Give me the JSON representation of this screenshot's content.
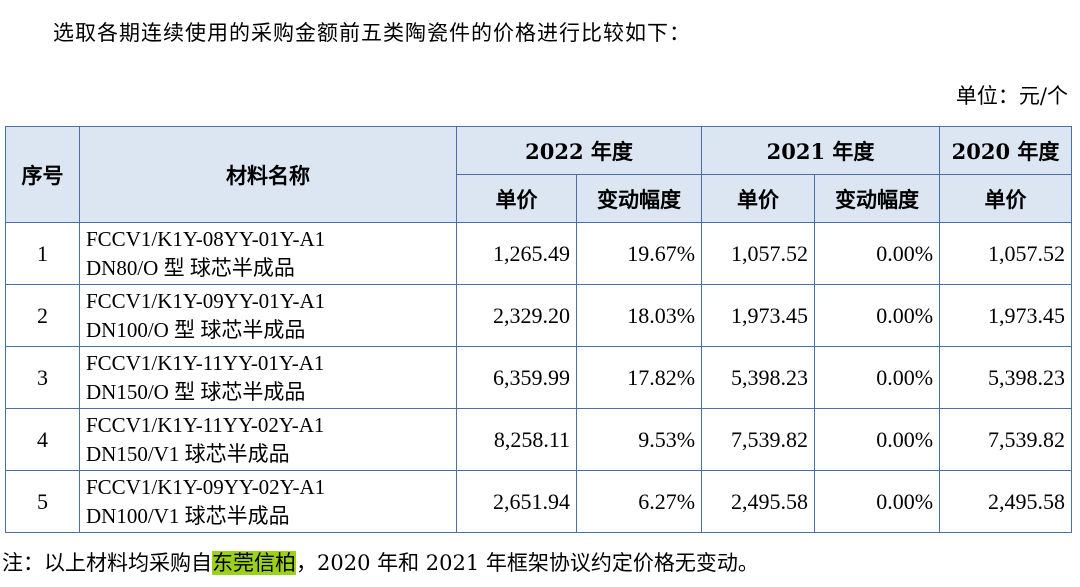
{
  "intro": "选取各期连续使用的采购金额前五类陶瓷件的价格进行比较如下：",
  "unit": "单位：元/个",
  "table": {
    "headers": {
      "seq": "序号",
      "name": "材料名称",
      "y2022": "2022 年度",
      "y2021": "2021 年度",
      "y2020": "2020 年度",
      "price": "单价",
      "change": "变动幅度"
    },
    "rows": [
      {
        "no": "1",
        "name1": "FCCV1/K1Y-08YY-01Y-A1",
        "name2": "DN80/O 型 球芯半成品",
        "p2022": "1,265.49",
        "c2022": "19.67%",
        "p2021": "1,057.52",
        "c2021": "0.00%",
        "p2020": "1,057.52"
      },
      {
        "no": "2",
        "name1": "FCCV1/K1Y-09YY-01Y-A1",
        "name2": "DN100/O 型 球芯半成品",
        "p2022": "2,329.20",
        "c2022": "18.03%",
        "p2021": "1,973.45",
        "c2021": "0.00%",
        "p2020": "1,973.45"
      },
      {
        "no": "3",
        "name1": "FCCV1/K1Y-11YY-01Y-A1",
        "name2": "DN150/O 型 球芯半成品",
        "p2022": "6,359.99",
        "c2022": "17.82%",
        "p2021": "5,398.23",
        "c2021": "0.00%",
        "p2020": "5,398.23"
      },
      {
        "no": "4",
        "name1": "FCCV1/K1Y-11YY-02Y-A1",
        "name2": "DN150/V1 球芯半成品",
        "p2022": "8,258.11",
        "c2022": "9.53%",
        "p2021": "7,539.82",
        "c2021": "0.00%",
        "p2020": "7,539.82"
      },
      {
        "no": "5",
        "name1": "FCCV1/K1Y-09YY-02Y-A1",
        "name2": "DN100/V1 球芯半成品",
        "p2022": "2,651.94",
        "c2022": "6.27%",
        "p2021": "2,495.58",
        "c2021": "0.00%",
        "p2020": "2,495.58"
      }
    ]
  },
  "note": {
    "prefix": "注：以上材料均采购自",
    "highlight": "东莞信柏",
    "suffix": "，2020 年和 2021 年框架协议约定价格无变动。"
  },
  "colors": {
    "header_bg": "#dce6f2",
    "border": "#4a6fa5",
    "highlight": "#9bd11b"
  }
}
